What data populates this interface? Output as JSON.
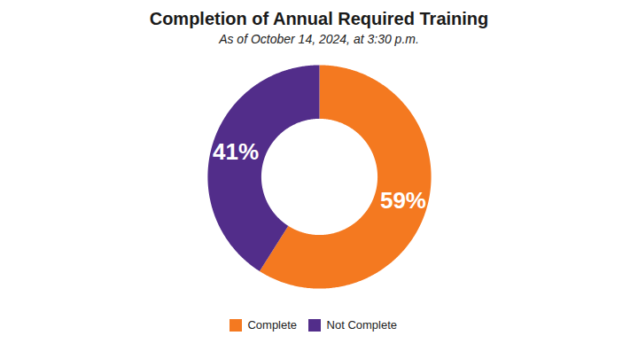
{
  "chart_data": {
    "type": "donut",
    "title": "Completion of Annual Required Training",
    "subtitle": "As of October 14, 2024, at 3:30 p.m.",
    "categories": [
      "Complete",
      "Not Complete"
    ],
    "values": [
      59,
      41
    ],
    "value_labels": [
      "59%",
      "41%"
    ],
    "colors": [
      "#F47920",
      "#522D8A"
    ],
    "data_labels": true,
    "legend": "bottom"
  }
}
